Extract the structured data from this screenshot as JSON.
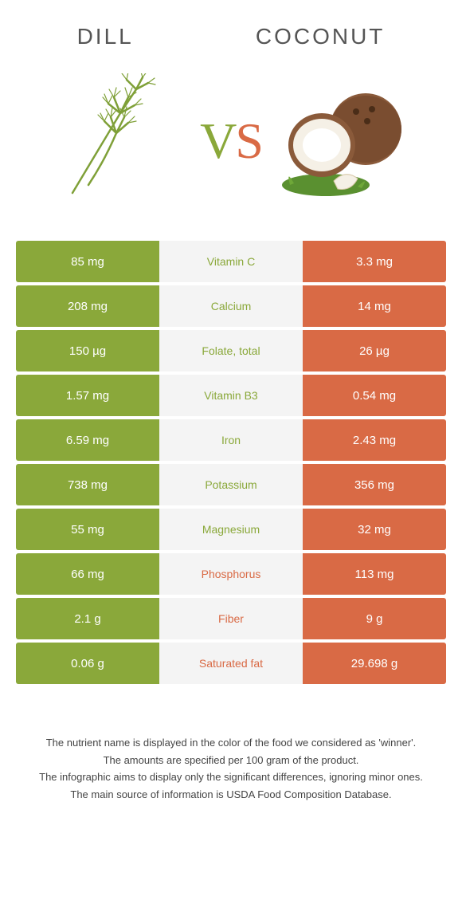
{
  "header": {
    "left_title": "Dill",
    "right_title": "Coconut",
    "vs_v": "V",
    "vs_s": "S"
  },
  "colors": {
    "left": "#8aa83a",
    "right": "#d96a45",
    "mid_bg": "#f4f4f4",
    "text_dark": "#333333"
  },
  "illustrations": {
    "left": "dill-sprig",
    "right": "coconut-halves"
  },
  "table": {
    "rows": [
      {
        "left": "85 mg",
        "nutrient": "Vitamin C",
        "right": "3.3 mg",
        "winner": "left"
      },
      {
        "left": "208 mg",
        "nutrient": "Calcium",
        "right": "14 mg",
        "winner": "left"
      },
      {
        "left": "150 µg",
        "nutrient": "Folate, total",
        "right": "26 µg",
        "winner": "left"
      },
      {
        "left": "1.57 mg",
        "nutrient": "Vitamin B3",
        "right": "0.54 mg",
        "winner": "left"
      },
      {
        "left": "6.59 mg",
        "nutrient": "Iron",
        "right": "2.43 mg",
        "winner": "left"
      },
      {
        "left": "738 mg",
        "nutrient": "Potassium",
        "right": "356 mg",
        "winner": "left"
      },
      {
        "left": "55 mg",
        "nutrient": "Magnesium",
        "right": "32 mg",
        "winner": "left"
      },
      {
        "left": "66 mg",
        "nutrient": "Phosphorus",
        "right": "113 mg",
        "winner": "right"
      },
      {
        "left": "2.1 g",
        "nutrient": "Fiber",
        "right": "9 g",
        "winner": "right"
      },
      {
        "left": "0.06 g",
        "nutrient": "Saturated fat",
        "right": "29.698 g",
        "winner": "right"
      }
    ]
  },
  "footer": {
    "line1": "The nutrient name is displayed in the color of the food we considered as 'winner'.",
    "line2": "The amounts are specified per 100 gram of the product.",
    "line3": "The infographic aims to display only the significant differences, ignoring minor ones.",
    "line4": "The main source of information is USDA Food Composition Database."
  }
}
